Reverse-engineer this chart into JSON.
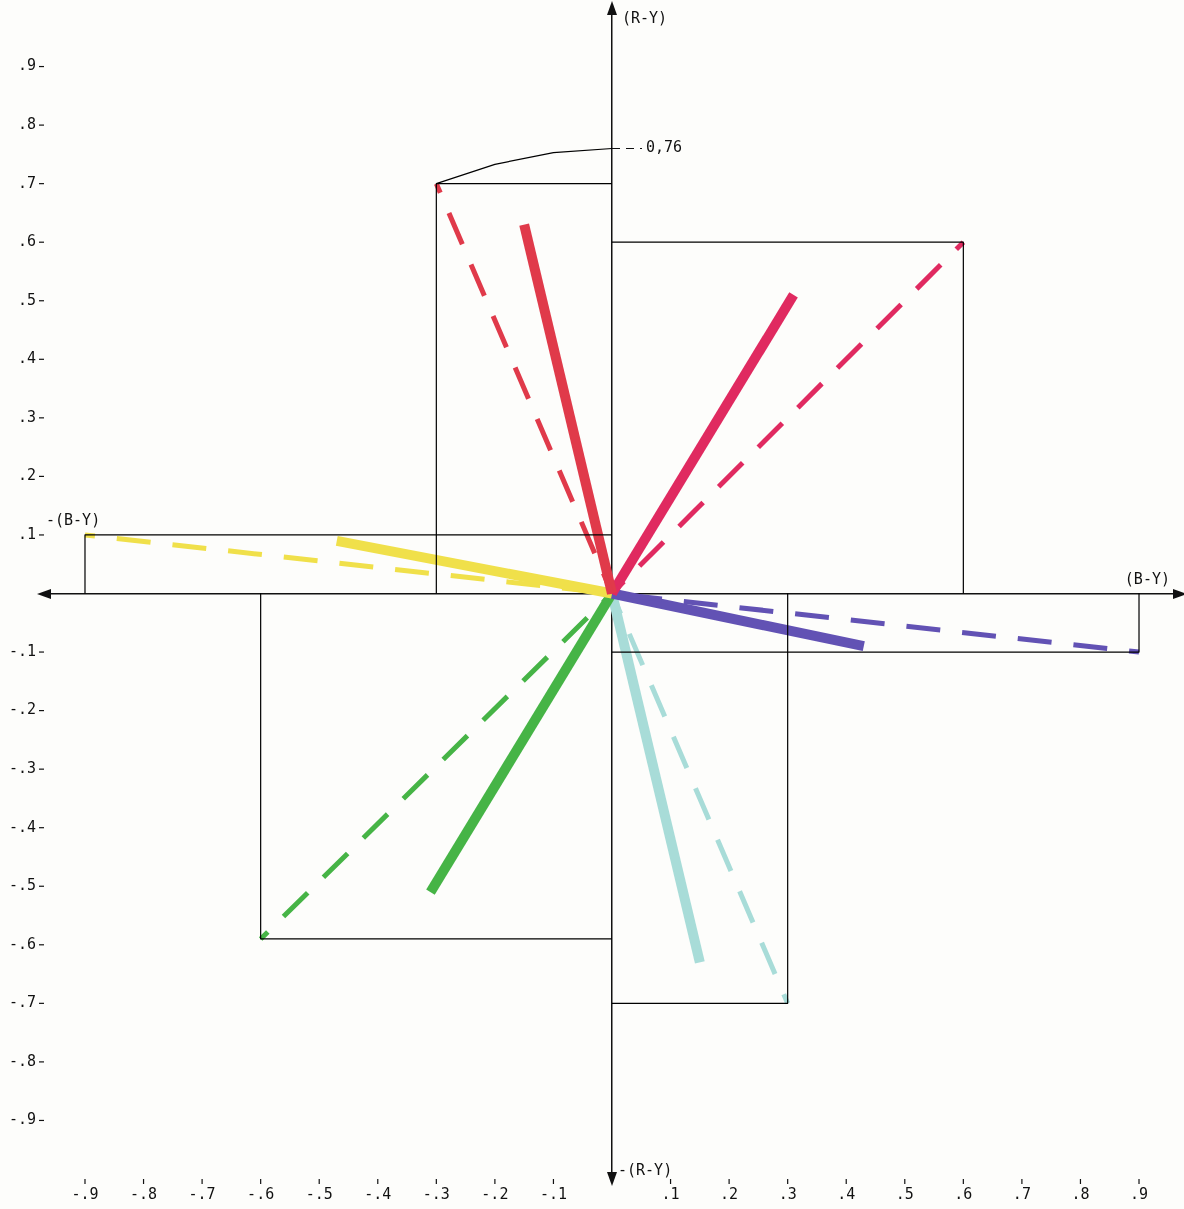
{
  "chart_data": {
    "type": "line",
    "xlabel": "(B-Y)",
    "ylabel": "(R-Y)",
    "annotations": [
      "-(B-Y)",
      "-(R-Y)",
      {
        "text": "0,76",
        "x": 0,
        "y": 0.76
      }
    ],
    "xlim": [
      -0.97,
      0.97
    ],
    "ylim": [
      -1.0,
      1.0
    ],
    "xticks": [
      {
        "value": -0.9,
        "label": "-.9"
      },
      {
        "value": -0.8,
        "label": "-.8"
      },
      {
        "value": -0.7,
        "label": "-.7"
      },
      {
        "value": -0.6,
        "label": "-.6"
      },
      {
        "value": -0.5,
        "label": "-.5"
      },
      {
        "value": -0.4,
        "label": "-.4"
      },
      {
        "value": -0.3,
        "label": "-.3"
      },
      {
        "value": -0.2,
        "label": "-.2"
      },
      {
        "value": -0.1,
        "label": "-.1"
      },
      {
        "value": 0.1,
        "label": ".1"
      },
      {
        "value": 0.2,
        "label": ".2"
      },
      {
        "value": 0.3,
        "label": ".3"
      },
      {
        "value": 0.4,
        "label": ".4"
      },
      {
        "value": 0.5,
        "label": ".5"
      },
      {
        "value": 0.6,
        "label": ".6"
      },
      {
        "value": 0.7,
        "label": ".7"
      },
      {
        "value": 0.8,
        "label": ".8"
      },
      {
        "value": 0.9,
        "label": ".9"
      }
    ],
    "yticks": [
      {
        "value": -0.9,
        "label": "-.9"
      },
      {
        "value": -0.8,
        "label": "-.8"
      },
      {
        "value": -0.7,
        "label": "-.7"
      },
      {
        "value": -0.6,
        "label": "-.6"
      },
      {
        "value": -0.5,
        "label": "-.5"
      },
      {
        "value": -0.4,
        "label": "-.4"
      },
      {
        "value": -0.3,
        "label": "-.3"
      },
      {
        "value": -0.2,
        "label": "-.2"
      },
      {
        "value": -0.1,
        "label": "-.1"
      },
      {
        "value": 0.1,
        "label": ".1"
      },
      {
        "value": 0.2,
        "label": ".2"
      },
      {
        "value": 0.3,
        "label": ".3"
      },
      {
        "value": 0.4,
        "label": ".4"
      },
      {
        "value": 0.5,
        "label": ".5"
      },
      {
        "value": 0.6,
        "label": ".6"
      },
      {
        "value": 0.7,
        "label": ".7"
      },
      {
        "value": 0.8,
        "label": ".8"
      },
      {
        "value": 0.9,
        "label": ".9"
      }
    ],
    "grid": false,
    "legend": false,
    "marker": "none",
    "series": [
      {
        "type": "step",
        "color": "#000000",
        "x": [
          -0.3,
          -0.3,
          0
        ],
        "values": [
          0,
          0.7,
          0.7
        ]
      },
      {
        "type": "step",
        "color": "#000000",
        "x": [
          -0.3,
          -0.2,
          -0.1,
          0
        ],
        "values": [
          0.7,
          0.733,
          0.753,
          0.76
        ]
      },
      {
        "type": "step",
        "color": "#000000",
        "x": [
          0.6,
          0.6,
          0
        ],
        "values": [
          0,
          0.6,
          0.6
        ]
      },
      {
        "type": "step",
        "color": "#000000",
        "x": [
          -0.9,
          -0.9,
          0
        ],
        "values": [
          0,
          0.1,
          0.1
        ]
      },
      {
        "type": "step",
        "color": "#000000",
        "x": [
          0.9,
          0.9,
          0
        ],
        "values": [
          0,
          -0.1,
          -0.1
        ]
      },
      {
        "type": "step",
        "color": "#000000",
        "x": [
          -0.6,
          -0.6,
          0
        ],
        "values": [
          0,
          -0.59,
          -0.59
        ]
      },
      {
        "type": "step",
        "color": "#000000",
        "x": [
          0.3,
          0.3,
          0
        ],
        "values": [
          0,
          -0.7,
          -0.7
        ]
      },
      {
        "color": "#e03a4a",
        "line_style": "dashed",
        "x": [
          0,
          -0.3
        ],
        "values": [
          0,
          0.7
        ]
      },
      {
        "color": "#e03a4a",
        "line_style": "solid",
        "x": [
          0,
          -0.15
        ],
        "values": [
          0,
          0.63
        ]
      },
      {
        "color": "#e02a60",
        "line_style": "dashed",
        "x": [
          0,
          0.6
        ],
        "values": [
          0,
          0.6
        ]
      },
      {
        "color": "#e02a60",
        "line_style": "solid",
        "x": [
          0,
          0.31
        ],
        "values": [
          0,
          0.51
        ]
      },
      {
        "color": "#f0e04a",
        "line_style": "dashed",
        "x": [
          0,
          -0.9
        ],
        "values": [
          0,
          0.1
        ]
      },
      {
        "color": "#f0e04a",
        "line_style": "solid",
        "x": [
          0,
          -0.47
        ],
        "values": [
          0,
          0.09
        ]
      },
      {
        "color": "#6252b4",
        "line_style": "dashed",
        "x": [
          0,
          0.9
        ],
        "values": [
          0,
          -0.1
        ]
      },
      {
        "color": "#6252b4",
        "line_style": "solid",
        "x": [
          0,
          0.43
        ],
        "values": [
          0,
          -0.09
        ]
      },
      {
        "color": "#46b446",
        "line_style": "dashed",
        "x": [
          0,
          -0.6
        ],
        "values": [
          0,
          -0.59
        ]
      },
      {
        "color": "#46b446",
        "line_style": "solid",
        "x": [
          0,
          -0.31
        ],
        "values": [
          0,
          -0.51
        ]
      },
      {
        "color": "#a8dcd8",
        "line_style": "dashed",
        "x": [
          0,
          0.3
        ],
        "values": [
          0,
          -0.7
        ]
      },
      {
        "color": "#a8dcd8",
        "line_style": "solid",
        "x": [
          0,
          0.15
        ],
        "values": [
          0,
          -0.63
        ]
      }
    ]
  }
}
